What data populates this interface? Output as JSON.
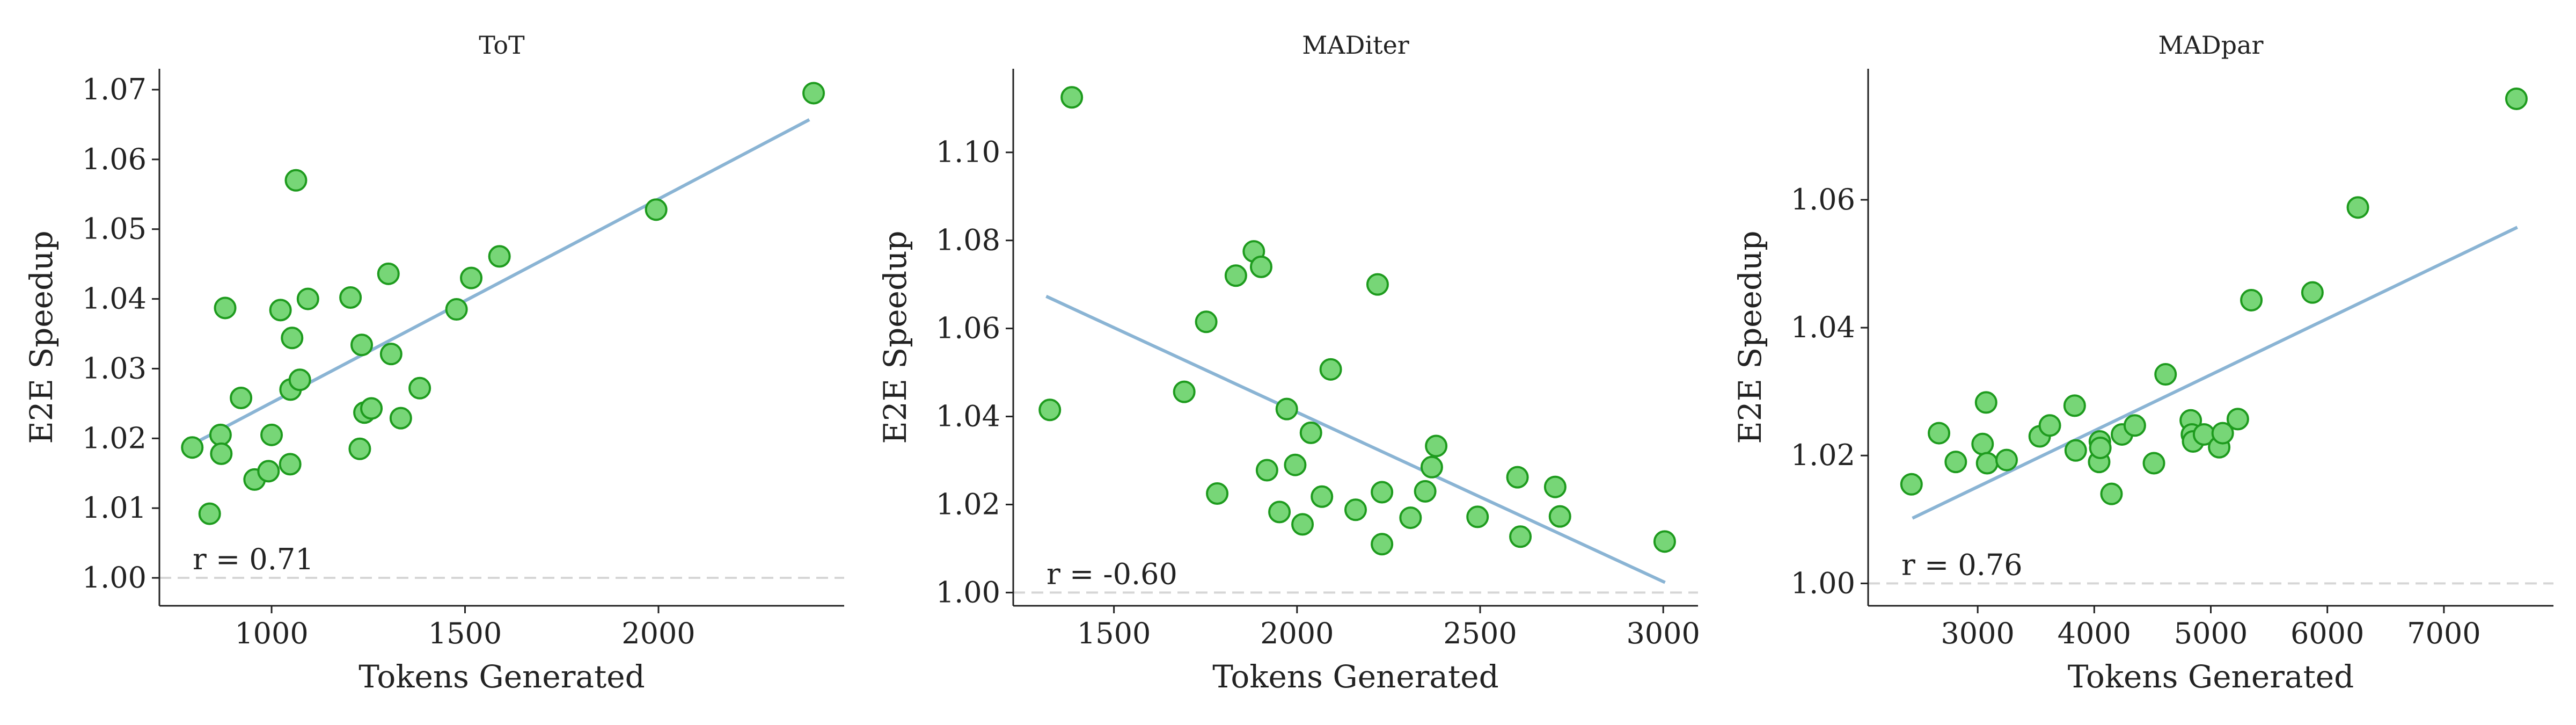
{
  "chart_data": [
    {
      "type": "scatter",
      "title": "ToT",
      "xlabel": "Tokens Generated",
      "ylabel": "E2E Speedup",
      "xlim": [
        710,
        2480
      ],
      "ylim": [
        0.996,
        1.073
      ],
      "xticks": [
        1000,
        1500,
        2000
      ],
      "yticks": [
        1.0,
        1.01,
        1.02,
        1.03,
        1.04,
        1.05,
        1.06,
        1.07
      ],
      "xtick_labels": [
        "1000",
        "1500",
        "2000"
      ],
      "ytick_labels": [
        "1.00",
        "1.01",
        "1.02",
        "1.03",
        "1.04",
        "1.05",
        "1.06",
        "1.07"
      ],
      "annotation": "r = 0.71",
      "points": [
        [
          795,
          1.0187
        ],
        [
          840,
          1.0092
        ],
        [
          868,
          1.0205
        ],
        [
          870,
          1.0178
        ],
        [
          880,
          1.0387
        ],
        [
          921,
          1.0258
        ],
        [
          956,
          1.0141
        ],
        [
          992,
          1.0153
        ],
        [
          1000,
          1.0205
        ],
        [
          1023,
          1.0384
        ],
        [
          1048,
          1.0163
        ],
        [
          1049,
          1.027
        ],
        [
          1053,
          1.0344
        ],
        [
          1063,
          1.057
        ],
        [
          1073,
          1.0284
        ],
        [
          1094,
          1.04
        ],
        [
          1204,
          1.0402
        ],
        [
          1228,
          1.0185
        ],
        [
          1233,
          1.0334
        ],
        [
          1240,
          1.0237
        ],
        [
          1258,
          1.0243
        ],
        [
          1302,
          1.0436
        ],
        [
          1309,
          1.0321
        ],
        [
          1334,
          1.0229
        ],
        [
          1383,
          1.0272
        ],
        [
          1478,
          1.0385
        ],
        [
          1516,
          1.043
        ],
        [
          1589,
          1.0461
        ],
        [
          1994,
          1.0528
        ],
        [
          2401,
          1.0695
        ]
      ],
      "fit": [
        [
          790,
          1.019
        ],
        [
          2390,
          1.0657
        ]
      ]
    },
    {
      "type": "scatter",
      "title": "MADiter",
      "xlabel": "Tokens Generated",
      "ylabel": "E2E Speedup",
      "xlim": [
        1225,
        3095
      ],
      "ylim": [
        0.997,
        1.119
      ],
      "xticks": [
        1500,
        2000,
        2500,
        3000
      ],
      "yticks": [
        1.0,
        1.02,
        1.04,
        1.06,
        1.08,
        1.1
      ],
      "xtick_labels": [
        "1500",
        "2000",
        "2500",
        "3000"
      ],
      "ytick_labels": [
        "1.00",
        "1.02",
        "1.04",
        "1.06",
        "1.08",
        "1.10"
      ],
      "annotation": "r = -0.60",
      "points": [
        [
          1325,
          1.0415
        ],
        [
          1385,
          1.1125
        ],
        [
          1692,
          1.0456
        ],
        [
          1752,
          1.0615
        ],
        [
          1782,
          1.0225
        ],
        [
          1833,
          1.072
        ],
        [
          1882,
          1.0775
        ],
        [
          1902,
          1.074
        ],
        [
          1918,
          1.0278
        ],
        [
          1952,
          1.0183
        ],
        [
          1972,
          1.0417
        ],
        [
          1995,
          1.029
        ],
        [
          2015,
          1.0155
        ],
        [
          2038,
          1.0363
        ],
        [
          2068,
          1.0218
        ],
        [
          2092,
          1.0507
        ],
        [
          2160,
          1.0188
        ],
        [
          2220,
          1.07
        ],
        [
          2232,
          1.0228
        ],
        [
          2232,
          1.011
        ],
        [
          2310,
          1.017
        ],
        [
          2350,
          1.023
        ],
        [
          2368,
          1.0285
        ],
        [
          2380,
          1.0333
        ],
        [
          2493,
          1.0172
        ],
        [
          2602,
          1.0262
        ],
        [
          2610,
          1.0127
        ],
        [
          2705,
          1.024
        ],
        [
          2718,
          1.0173
        ],
        [
          3004,
          1.0116
        ]
      ],
      "fit": [
        [
          1315,
          1.0673
        ],
        [
          3005,
          1.0023
        ]
      ]
    },
    {
      "type": "scatter",
      "title": "MADpar",
      "xlabel": "Tokens Generated",
      "ylabel": "E2E Speedup",
      "xlim": [
        2060,
        7940
      ],
      "ylim": [
        0.9965,
        1.0805
      ],
      "xticks": [
        3000,
        4000,
        5000,
        6000,
        7000
      ],
      "yticks": [
        1.0,
        1.02,
        1.04,
        1.06
      ],
      "xtick_labels": [
        "3000",
        "4000",
        "5000",
        "6000",
        "7000"
      ],
      "ytick_labels": [
        "1.00",
        "1.02",
        "1.04",
        "1.06"
      ],
      "annotation": "r = 0.76",
      "points": [
        [
          2432,
          1.0155
        ],
        [
          2668,
          1.0235
        ],
        [
          2812,
          1.019
        ],
        [
          3042,
          1.0218
        ],
        [
          3072,
          1.0283
        ],
        [
          3081,
          1.0188
        ],
        [
          3248,
          1.0193
        ],
        [
          3532,
          1.023
        ],
        [
          3619,
          1.0247
        ],
        [
          3832,
          1.0278
        ],
        [
          3841,
          1.0208
        ],
        [
          4042,
          1.019
        ],
        [
          4048,
          1.0222
        ],
        [
          4052,
          1.0212
        ],
        [
          4148,
          1.014
        ],
        [
          4238,
          1.0233
        ],
        [
          4348,
          1.0247
        ],
        [
          4512,
          1.0188
        ],
        [
          4612,
          1.0327
        ],
        [
          4828,
          1.0255
        ],
        [
          4838,
          1.0233
        ],
        [
          4848,
          1.0222
        ],
        [
          4942,
          1.0233
        ],
        [
          5072,
          1.0213
        ],
        [
          5102,
          1.0235
        ],
        [
          5232,
          1.0257
        ],
        [
          5348,
          1.0443
        ],
        [
          5872,
          1.0455
        ],
        [
          6262,
          1.0588
        ],
        [
          7622,
          1.0758
        ]
      ],
      "fit": [
        [
          2440,
          1.0102
        ],
        [
          7630,
          1.0557
        ]
      ]
    }
  ],
  "style": {
    "marker_fill": "#77d677",
    "marker_edge": "#1e9b1e",
    "fit_color": "#8ab4d4",
    "baseline_color": "#d6d6d6",
    "axis_color": "#222222"
  }
}
